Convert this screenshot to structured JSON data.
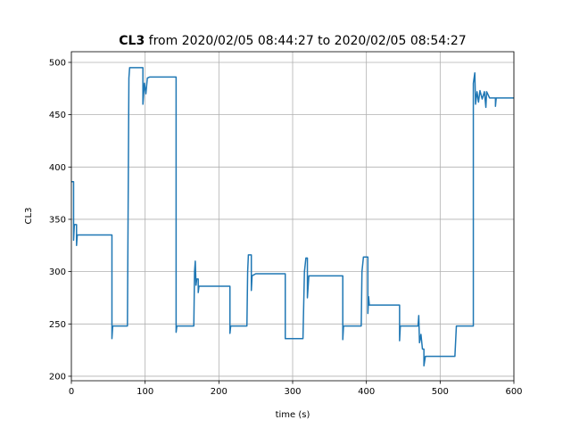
{
  "chart_data": {
    "type": "line",
    "title": {
      "name": "CL3",
      "text": "from 2020/02/05 08:44:27 to 2020/02/05 08:54:27"
    },
    "xlabel": "time (s)",
    "ylabel": "CL3",
    "xlim": [
      0,
      600
    ],
    "ylim": [
      195.7,
      510.2
    ],
    "xticks": [
      0,
      100,
      200,
      300,
      400,
      500,
      600
    ],
    "yticks": [
      200,
      250,
      300,
      350,
      400,
      450,
      500
    ],
    "grid": true,
    "series": [
      {
        "name": "CL3",
        "color": "#1f77b4",
        "x": [
          0,
          3,
          3,
          4,
          7,
          7,
          8,
          55,
          55,
          56,
          76,
          78,
          79,
          97,
          97,
          99,
          101,
          103,
          106,
          142,
          142,
          143,
          166,
          167,
          168,
          169,
          170,
          172,
          172,
          173,
          215,
          215,
          216,
          238,
          239,
          240,
          244,
          244,
          245,
          250,
          290,
          290,
          314,
          316,
          318,
          320,
          320,
          322,
          368,
          368,
          369,
          393,
          394,
          396,
          402,
          402,
          403,
          404,
          445,
          445,
          446,
          470,
          471,
          472,
          474,
          476,
          478,
          478,
          480,
          520,
          522,
          545,
          545,
          547,
          548,
          550,
          552,
          554,
          557,
          560,
          562,
          563,
          567,
          575,
          575,
          576,
          600
        ],
        "values": [
          386,
          386,
          330,
          345,
          345,
          325,
          335,
          335,
          236,
          248,
          248,
          485,
          495,
          495,
          460,
          480,
          470,
          485,
          486,
          486,
          242,
          248,
          248,
          300,
          310,
          287,
          293,
          293,
          280,
          286,
          286,
          241,
          248,
          248,
          300,
          316,
          316,
          282,
          296,
          298,
          298,
          236,
          236,
          300,
          313,
          313,
          275,
          296,
          296,
          235,
          248,
          248,
          300,
          314,
          314,
          260,
          276,
          268,
          268,
          234,
          248,
          248,
          258,
          232,
          240,
          226,
          226,
          210,
          219,
          219,
          248,
          248,
          480,
          490,
          460,
          472,
          462,
          473,
          465,
          472,
          457,
          472,
          466,
          466,
          458,
          466,
          466
        ]
      }
    ]
  }
}
